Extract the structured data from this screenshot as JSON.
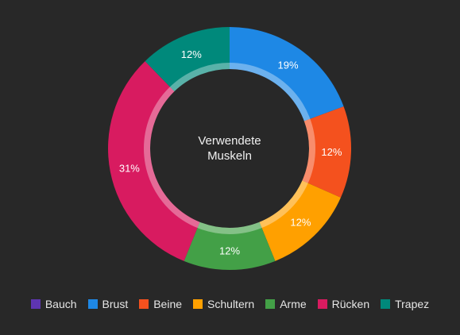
{
  "chart_data": {
    "type": "pie",
    "variant": "donut",
    "center_label": [
      "Verwendete",
      "Muskeln"
    ],
    "legend_placement": "bottom",
    "categories": [
      "Bauch",
      "Brust",
      "Beine",
      "Schultern",
      "Arme",
      "Rücken",
      "Trapez"
    ],
    "values": [
      0,
      19,
      12,
      12,
      12,
      31,
      12
    ],
    "labels": [
      "",
      "19%",
      "12%",
      "12%",
      "12%",
      "31%",
      "12%"
    ],
    "colors": [
      "#5e35b1",
      "#1e88e5",
      "#f4511e",
      "#ffa000",
      "#43a047",
      "#d81b60",
      "#00897b"
    ]
  }
}
